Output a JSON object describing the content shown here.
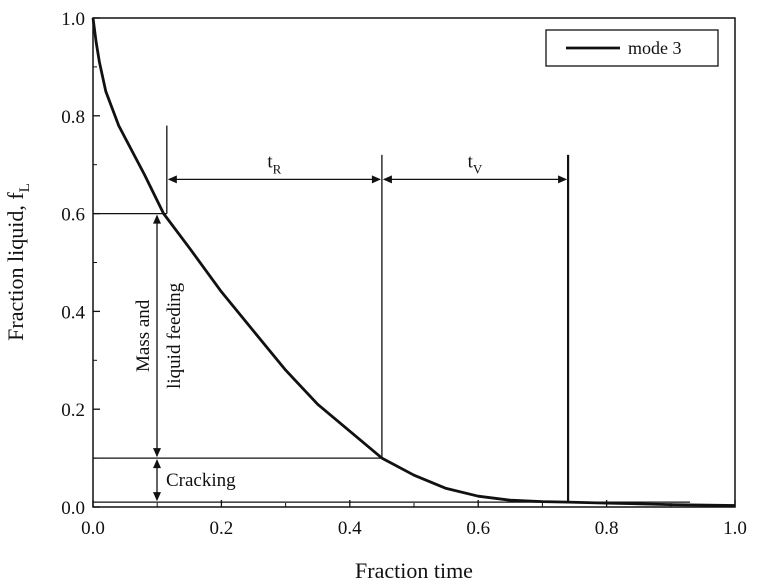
{
  "chart_data": {
    "type": "line",
    "title": "",
    "xlabel": "Fraction time",
    "ylabel": "Fraction liquid, f",
    "ylabel_sub": "L",
    "xlim": [
      0.0,
      1.0
    ],
    "ylim": [
      0.0,
      1.0
    ],
    "x_ticks": [
      "0.0",
      "0.2",
      "0.4",
      "0.6",
      "0.8",
      "1.0"
    ],
    "y_ticks": [
      "0.0",
      "0.2",
      "0.4",
      "0.6",
      "0.8",
      "1.0"
    ],
    "x_tick_values": [
      0.0,
      0.2,
      0.4,
      0.6,
      0.8,
      1.0
    ],
    "y_tick_values": [
      0.0,
      0.2,
      0.4,
      0.6,
      0.8,
      1.0
    ],
    "grid": false,
    "legend_position": "top-right",
    "series": [
      {
        "name": "mode 3",
        "color": "#111111",
        "x": [
          0.0,
          0.005,
          0.01,
          0.02,
          0.04,
          0.06,
          0.08,
          0.11,
          0.15,
          0.2,
          0.25,
          0.3,
          0.35,
          0.4,
          0.45,
          0.5,
          0.55,
          0.6,
          0.65,
          0.7,
          0.74,
          0.8,
          0.9,
          1.0
        ],
        "y": [
          1.0,
          0.95,
          0.91,
          0.85,
          0.78,
          0.73,
          0.68,
          0.6,
          0.53,
          0.44,
          0.36,
          0.28,
          0.21,
          0.155,
          0.1,
          0.065,
          0.038,
          0.022,
          0.014,
          0.011,
          0.01,
          0.008,
          0.005,
          0.003
        ]
      }
    ],
    "annotations": {
      "tR": {
        "label": "t",
        "sub": "R",
        "x_start": 0.115,
        "x_end": 0.45,
        "y": 0.67
      },
      "tV": {
        "label": "t",
        "sub": "V",
        "x_start": 0.45,
        "x_end": 0.74,
        "y": 0.67
      },
      "mass_feeding": {
        "line1": "Mass and",
        "line2": "liquid feeding",
        "y_low": 0.1,
        "y_high": 0.6
      },
      "cracking": {
        "label": "Cracking",
        "y_low": 0.01,
        "y_high": 0.1
      }
    }
  }
}
